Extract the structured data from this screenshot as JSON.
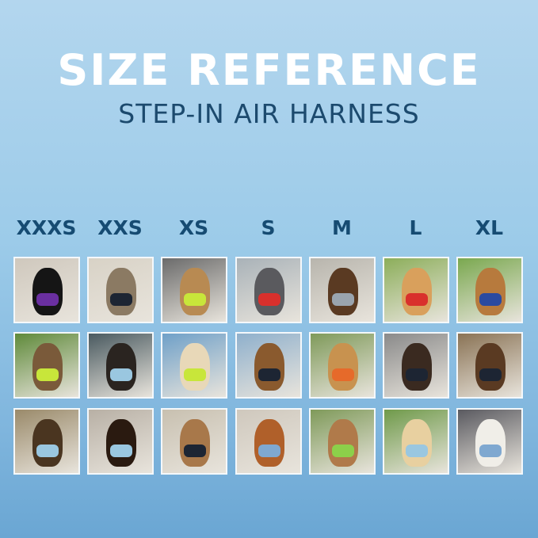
{
  "header": {
    "title": "SIZE REFERENCE",
    "subtitle": "STEP-IN AIR HARNESS"
  },
  "sizes": [
    "XXXS",
    "XXS",
    "XS",
    "S",
    "M",
    "L",
    "XL"
  ],
  "photos": [
    [
      {
        "pet": "#151515",
        "bg": "#cfc8bd",
        "harness": "#6a2fa0"
      },
      {
        "pet": "#8b7a63",
        "bg": "#d8d2c6",
        "harness": "#1d2533"
      },
      {
        "pet": "#b88a52",
        "bg": "#6b6b6b",
        "harness": "#c8e63a"
      },
      {
        "pet": "#5a5a5e",
        "bg": "#a9b2b8",
        "harness": "#d9302c"
      },
      {
        "pet": "#5a3a22",
        "bg": "#b8b5ad",
        "harness": "#9aa4ae"
      },
      {
        "pet": "#d9a05c",
        "bg": "#8cae5a",
        "harness": "#d9302c"
      },
      {
        "pet": "#b77a3d",
        "bg": "#7aa84f",
        "harness": "#2b4aa0"
      }
    ],
    [
      {
        "pet": "#7a5a3a",
        "bg": "#5f8a3a",
        "harness": "#c8e63a"
      },
      {
        "pet": "#2a2420",
        "bg": "#4a5a60",
        "harness": "#9ac7e0"
      },
      {
        "pet": "#e8d8b8",
        "bg": "#6fa0c8",
        "harness": "#c8e63a"
      },
      {
        "pet": "#8a5a2e",
        "bg": "#8fb0cc",
        "harness": "#1d2533"
      },
      {
        "pet": "#c8924f",
        "bg": "#7f9a5a",
        "harness": "#e66a2a"
      },
      {
        "pet": "#3a2a20",
        "bg": "#8a8a8a",
        "harness": "#1d2533"
      },
      {
        "pet": "#5a3a22",
        "bg": "#8a7355",
        "harness": "#1d2533"
      }
    ],
    [
      {
        "pet": "#4a3520",
        "bg": "#9a8a6a",
        "harness": "#9ac7e0"
      },
      {
        "pet": "#2a1a10",
        "bg": "#b8b0a5",
        "harness": "#9ac7e0"
      },
      {
        "pet": "#a8784a",
        "bg": "#c8c0b0",
        "harness": "#1d2533"
      },
      {
        "pet": "#b0602a",
        "bg": "#cfc8bd",
        "harness": "#7fa8d0"
      },
      {
        "pet": "#b07a4a",
        "bg": "#7f9a5a",
        "harness": "#8cd04a"
      },
      {
        "pet": "#e8d0a0",
        "bg": "#6f9a4a",
        "harness": "#9ac7e0"
      },
      {
        "pet": "#f0eee8",
        "bg": "#5a5a60",
        "harness": "#7fa8d0"
      }
    ]
  ]
}
